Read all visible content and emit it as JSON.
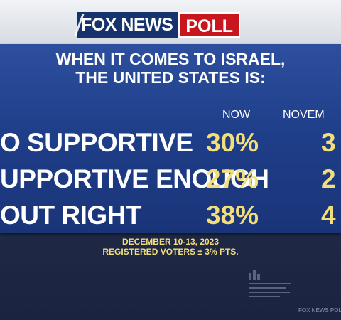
{
  "header": {
    "logo_fox_text": "FOX NEWS",
    "logo_poll_text": "POLL"
  },
  "question": {
    "line1": "WHEN IT COMES TO ISRAEL,",
    "line2": "THE UNITED STATES IS:"
  },
  "columns": {
    "now": "NOW",
    "previous": "NOVEM"
  },
  "rows": [
    {
      "label": "O SUPPORTIVE",
      "now": "30%",
      "previous": "3"
    },
    {
      "label": "UPPORTIVE ENOUGH",
      "now": "27%",
      "previous": "2"
    },
    {
      "label": "OUT RIGHT",
      "now": "38%",
      "previous": "4"
    }
  ],
  "footer": {
    "dates": "DECEMBER 10-13, 2023",
    "sample": "REGISTERED VOTERS ± 3% PTS."
  },
  "watermark": "FOX NEWS POLL",
  "colors": {
    "panel_blue": "#1f3f8a",
    "brand_navy": "#17336e",
    "brand_red": "#c8161e",
    "value_yellow": "#f3df7a"
  }
}
